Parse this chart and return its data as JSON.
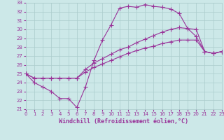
{
  "title": "",
  "xlabel": "Windchill (Refroidissement éolien,°C)",
  "background_color": "#cce8e8",
  "grid_color": "#aacccc",
  "line_color": "#993399",
  "xlim": [
    0,
    23
  ],
  "ylim": [
    21,
    33
  ],
  "yticks": [
    21,
    22,
    23,
    24,
    25,
    26,
    27,
    28,
    29,
    30,
    31,
    32,
    33
  ],
  "xticks": [
    0,
    1,
    2,
    3,
    4,
    5,
    6,
    7,
    8,
    9,
    10,
    11,
    12,
    13,
    14,
    15,
    16,
    17,
    18,
    19,
    20,
    21,
    22,
    23
  ],
  "line1_x": [
    0,
    1,
    2,
    3,
    4,
    5,
    6,
    7,
    8,
    9,
    10,
    11,
    12,
    13,
    14,
    15,
    16,
    17,
    18,
    19,
    20,
    21,
    22,
    23
  ],
  "line1_y": [
    25.0,
    24.0,
    23.5,
    23.0,
    22.2,
    22.2,
    21.2,
    23.5,
    26.5,
    28.8,
    30.5,
    32.4,
    32.6,
    32.5,
    32.8,
    32.6,
    32.5,
    32.3,
    31.8,
    30.1,
    29.2,
    27.5,
    27.3,
    27.5
  ],
  "line2_x": [
    0,
    1,
    2,
    3,
    4,
    5,
    6,
    7,
    8,
    9,
    10,
    11,
    12,
    13,
    14,
    15,
    16,
    17,
    18,
    19,
    20,
    21,
    22,
    23
  ],
  "line2_y": [
    25.0,
    24.5,
    24.5,
    24.5,
    24.5,
    24.5,
    24.5,
    25.5,
    26.2,
    26.7,
    27.2,
    27.7,
    28.0,
    28.5,
    28.9,
    29.3,
    29.7,
    30.0,
    30.2,
    30.1,
    30.0,
    27.5,
    27.3,
    27.5
  ],
  "line3_x": [
    0,
    1,
    2,
    3,
    4,
    5,
    6,
    7,
    8,
    9,
    10,
    11,
    12,
    13,
    14,
    15,
    16,
    17,
    18,
    19,
    20,
    21,
    22,
    23
  ],
  "line3_y": [
    25.0,
    24.5,
    24.5,
    24.5,
    24.5,
    24.5,
    24.5,
    25.2,
    25.7,
    26.1,
    26.5,
    26.9,
    27.3,
    27.6,
    27.9,
    28.1,
    28.4,
    28.6,
    28.8,
    28.8,
    28.8,
    27.5,
    27.3,
    27.5
  ],
  "tick_color": "#993399",
  "tick_fontsize": 5,
  "xlabel_fontsize": 6,
  "marker_size": 2,
  "line_width": 0.8
}
